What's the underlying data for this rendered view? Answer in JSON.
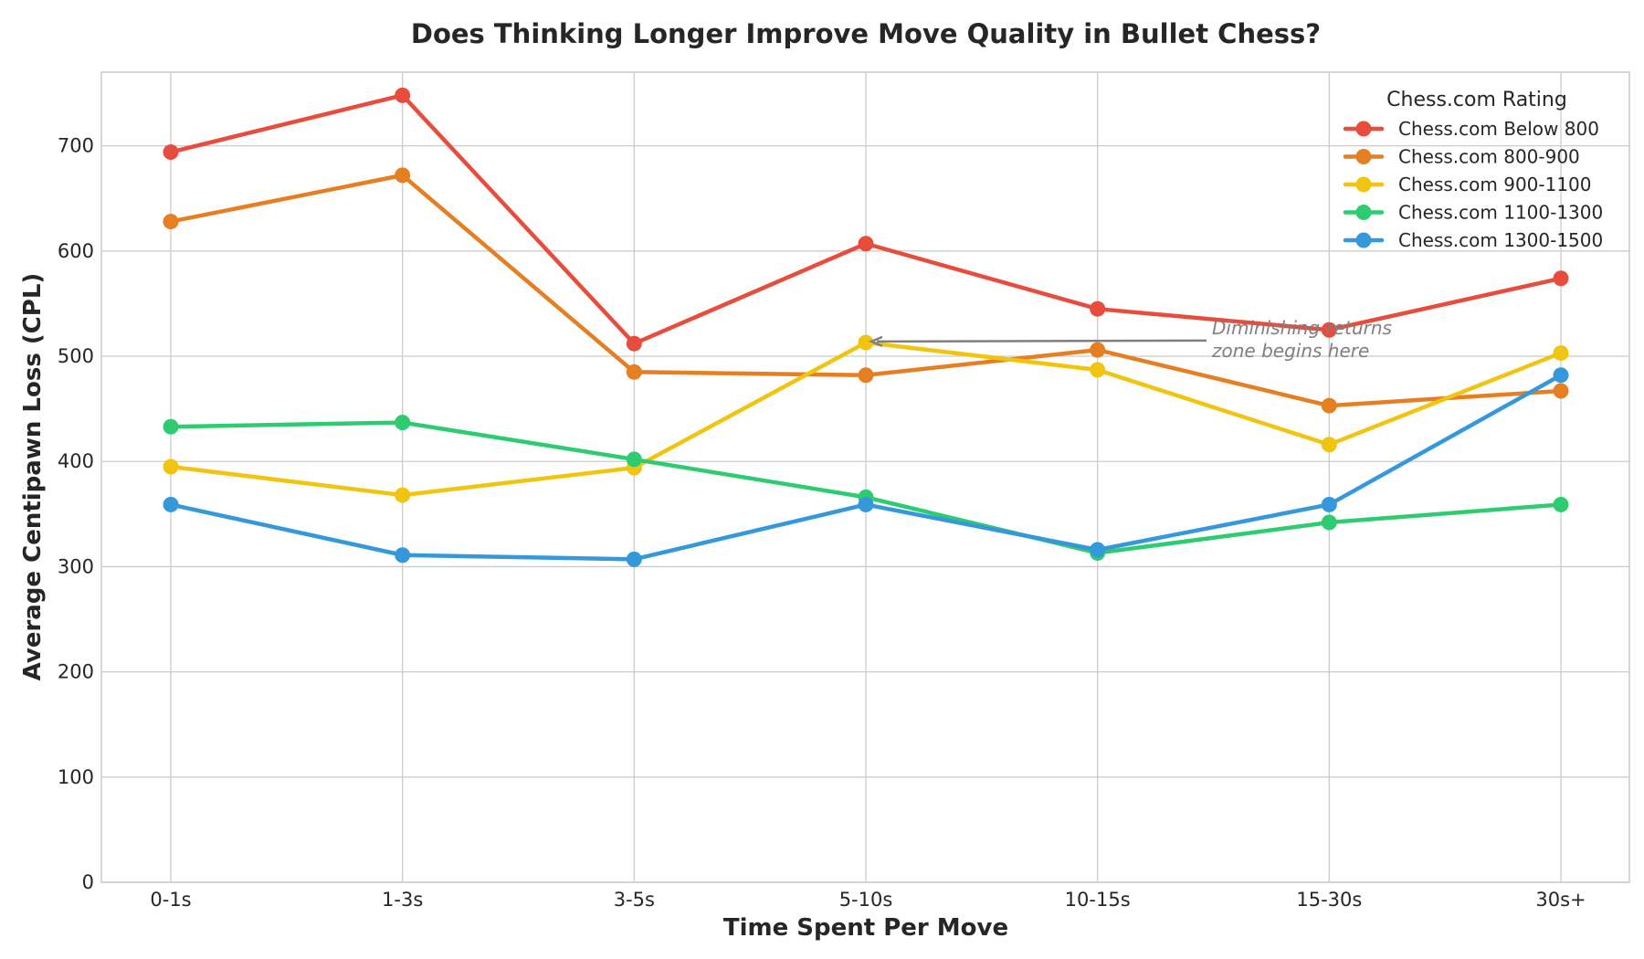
{
  "chart_data": {
    "type": "line",
    "title": "Does Thinking Longer Improve Move Quality in Bullet Chess?",
    "xlabel": "Time Spent Per Move",
    "ylabel": "Average Centipawn Loss (CPL)",
    "categories": [
      "0-1s",
      "1-3s",
      "3-5s",
      "5-10s",
      "10-15s",
      "15-30s",
      "30s+"
    ],
    "ylim": [
      0,
      770
    ],
    "yticks": [
      0,
      100,
      200,
      300,
      400,
      500,
      600,
      700
    ],
    "grid": true,
    "legend": {
      "title": "Chess.com Rating",
      "position": "top-right"
    },
    "series": [
      {
        "name": "Chess.com Below 800",
        "color": "#e74c3c",
        "values": [
          694,
          748,
          512,
          607,
          545,
          525,
          574
        ]
      },
      {
        "name": "Chess.com 800-900",
        "color": "#e67e22",
        "values": [
          628,
          672,
          485,
          482,
          506,
          453,
          467
        ]
      },
      {
        "name": "Chess.com 900-1100",
        "color": "#f1c40f",
        "values": [
          395,
          368,
          394,
          513,
          487,
          416,
          503
        ]
      },
      {
        "name": "Chess.com 1100-1300",
        "color": "#2ecc71",
        "values": [
          433,
          437,
          402,
          366,
          313,
          342,
          359
        ]
      },
      {
        "name": "Chess.com 1300-1500",
        "color": "#3498db",
        "values": [
          359,
          311,
          307,
          359,
          316,
          359,
          482
        ]
      }
    ],
    "annotation": {
      "lines": [
        "Diminishing returns",
        "zone begins here"
      ],
      "target": {
        "x": "5-10s",
        "y": 514
      },
      "arrow_color": "#7f7f7f"
    }
  }
}
